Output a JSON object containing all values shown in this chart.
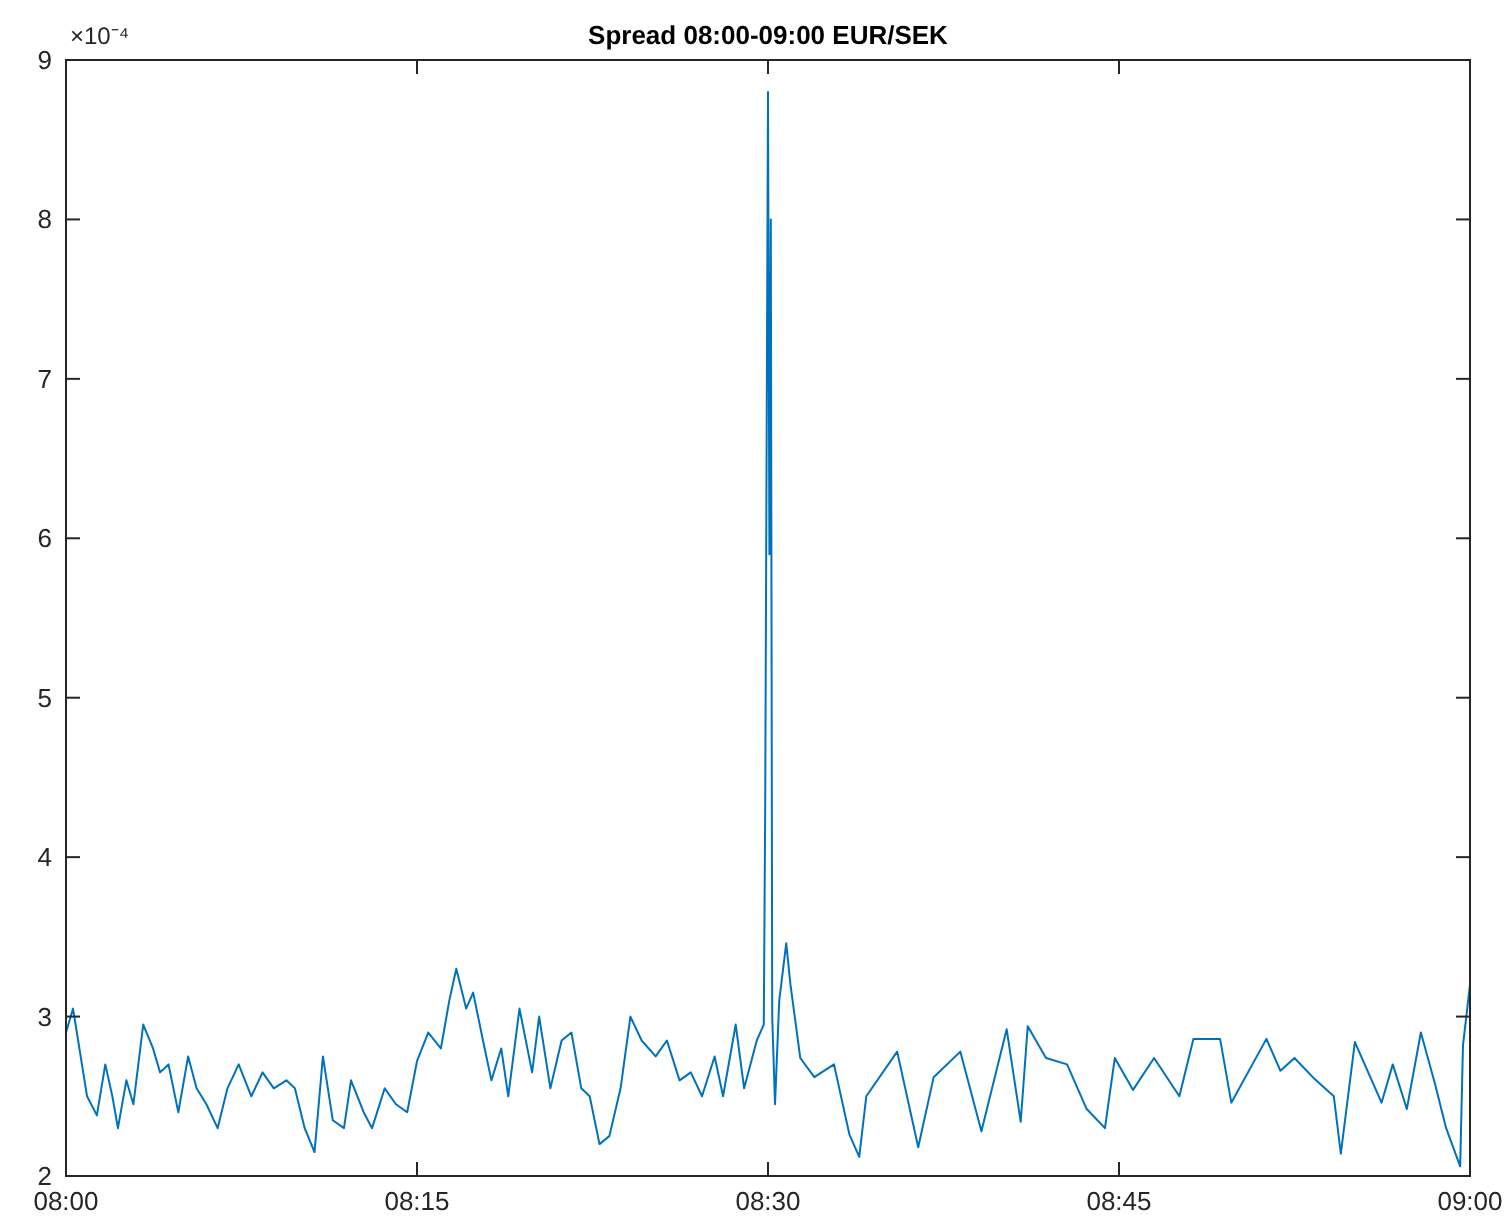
{
  "chart_data": {
    "type": "line",
    "title": "Spread 08:00-09:00 EUR/SEK",
    "annotations": [
      "×10⁻⁴"
    ],
    "xlim": [
      8,
      9
    ],
    "xticks": [
      {
        "value": 8,
        "label": "08:00"
      },
      {
        "value": 8.25,
        "label": "08:15"
      },
      {
        "value": 8.5,
        "label": "08:30"
      },
      {
        "value": 8.75,
        "label": "08:45"
      },
      {
        "value": 9,
        "label": "09:00"
      }
    ],
    "ylim": [
      2,
      9
    ],
    "yticks": [
      2,
      3,
      4,
      5,
      6,
      7,
      8,
      9
    ],
    "grid": false,
    "marker": "none",
    "line_style": "solid",
    "series": [
      {
        "color": "#0072bd",
        "x": [
          8,
          8.005,
          8.015,
          8.022,
          8.028,
          8.033,
          8.037,
          8.043,
          8.048,
          8.055,
          8.062,
          8.067,
          8.073,
          8.08,
          8.087,
          8.093,
          8.1,
          8.108,
          8.115,
          8.123,
          8.132,
          8.14,
          8.148,
          8.157,
          8.163,
          8.17,
          8.177,
          8.183,
          8.19,
          8.198,
          8.203,
          8.212,
          8.218,
          8.227,
          8.235,
          8.243,
          8.25,
          8.258,
          8.267,
          8.273,
          8.278,
          8.285,
          8.29,
          8.297,
          8.303,
          8.31,
          8.315,
          8.323,
          8.332,
          8.337,
          8.345,
          8.353,
          8.36,
          8.367,
          8.373,
          8.38,
          8.387,
          8.395,
          8.402,
          8.41,
          8.42,
          8.428,
          8.437,
          8.445,
          8.453,
          8.462,
          8.468,
          8.477,
          8.483,
          8.492,
          8.497,
          8.498,
          8.5,
          8.501,
          8.502,
          8.503,
          8.505,
          8.508,
          8.513,
          8.516,
          8.523,
          8.533,
          8.547,
          8.558,
          8.565,
          8.57,
          8.592,
          8.607,
          8.618,
          8.637,
          8.652,
          8.67,
          8.68,
          8.685,
          8.698,
          8.713,
          8.727,
          8.74,
          8.747,
          8.76,
          8.775,
          8.793,
          8.803,
          8.822,
          8.83,
          8.855,
          8.865,
          8.875,
          8.888,
          8.903,
          8.908,
          8.918,
          8.937,
          8.945,
          8.955,
          8.965,
          8.975,
          8.983,
          8.993,
          8.995,
          9
        ],
        "values": [
          2.9,
          3.05,
          2.5,
          2.38,
          2.7,
          2.5,
          2.3,
          2.6,
          2.45,
          2.95,
          2.8,
          2.65,
          2.7,
          2.4,
          2.75,
          2.55,
          2.45,
          2.3,
          2.55,
          2.7,
          2.5,
          2.65,
          2.55,
          2.6,
          2.55,
          2.3,
          2.15,
          2.75,
          2.35,
          2.3,
          2.6,
          2.4,
          2.3,
          2.55,
          2.45,
          2.4,
          2.72,
          2.9,
          2.8,
          3.1,
          3.3,
          3.05,
          3.15,
          2.85,
          2.6,
          2.8,
          2.5,
          3.05,
          2.65,
          3.0,
          2.55,
          2.85,
          2.9,
          2.55,
          2.5,
          2.2,
          2.25,
          2.55,
          3.0,
          2.85,
          2.75,
          2.85,
          2.6,
          2.65,
          2.5,
          2.75,
          2.5,
          2.95,
          2.55,
          2.85,
          2.95,
          4.3,
          8.8,
          5.9,
          8.0,
          3.0,
          2.45,
          3.1,
          3.46,
          3.2,
          2.74,
          2.62,
          2.7,
          2.26,
          2.12,
          2.5,
          2.78,
          2.18,
          2.62,
          2.78,
          2.28,
          2.92,
          2.34,
          2.94,
          2.74,
          2.7,
          2.42,
          2.3,
          2.74,
          2.54,
          2.74,
          2.5,
          2.86,
          2.86,
          2.46,
          2.86,
          2.66,
          2.74,
          2.62,
          2.5,
          2.14,
          2.84,
          2.46,
          2.7,
          2.42,
          2.9,
          2.58,
          2.3,
          2.06,
          2.82,
          3.2
        ]
      }
    ]
  }
}
